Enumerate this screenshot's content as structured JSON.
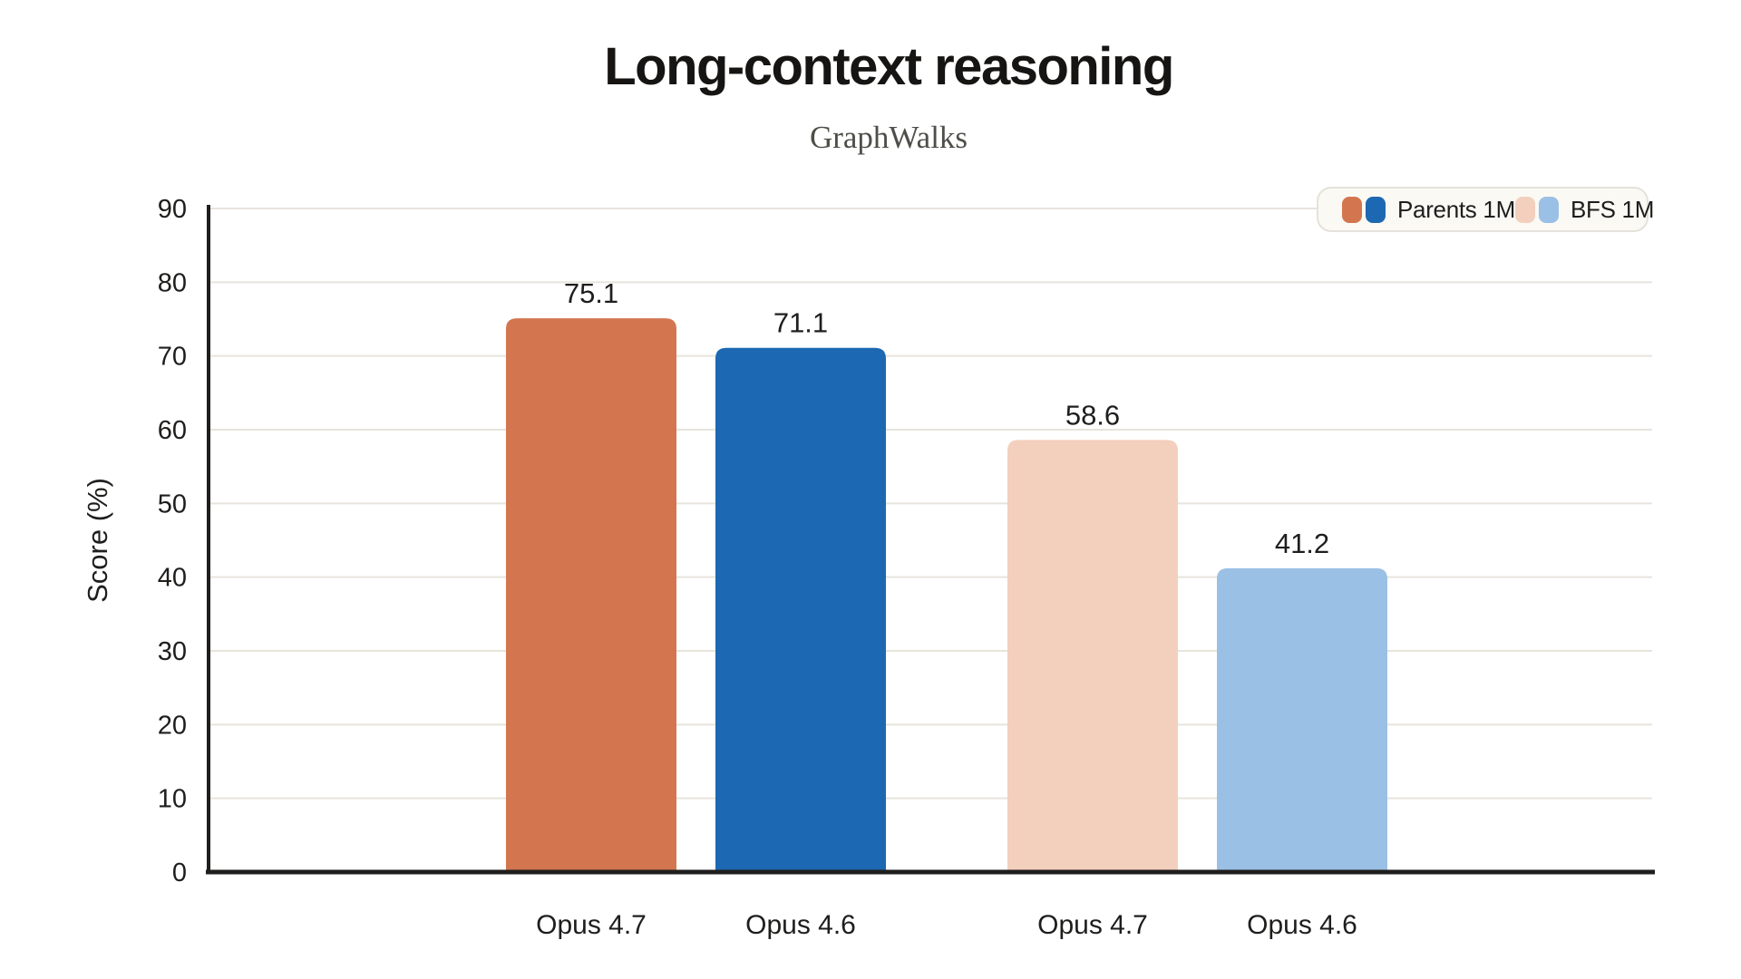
{
  "chart_data": {
    "type": "bar",
    "title": "Long-context reasoning",
    "subtitle": "GraphWalks",
    "ylabel": "Score (%)",
    "xlabel": "",
    "ylim": [
      0,
      90
    ],
    "ytick_step": 10,
    "grid": true,
    "legend_position": "top-right",
    "categories": [
      "Opus 4.7",
      "Opus 4.6",
      "Opus 4.7",
      "Opus 4.6"
    ],
    "bars": [
      {
        "category": "Opus 4.7",
        "group": "Parents 1M",
        "value": 75.1,
        "color": "#d3764f"
      },
      {
        "category": "Opus 4.6",
        "group": "Parents 1M",
        "value": 71.1,
        "color": "#1d68b2"
      },
      {
        "category": "Opus 4.7",
        "group": "BFS 1M",
        "value": 58.6,
        "color": "#f3cfbe"
      },
      {
        "category": "Opus 4.6",
        "group": "BFS 1M",
        "value": 41.2,
        "color": "#9bc0e5"
      }
    ],
    "legend": [
      {
        "label": "Parents 1M",
        "swatches": [
          "#d3764f",
          "#1d68b2"
        ]
      },
      {
        "label": "BFS 1M",
        "swatches": [
          "#f3cfbe",
          "#9bc0e5"
        ]
      }
    ],
    "colors": {
      "ink": "#1f1e1d",
      "grid": "#e7e4dc",
      "legend_background": "#faf9f4",
      "legend_border": "#e5e2da",
      "subtitle_text": "#4f4e49"
    }
  }
}
